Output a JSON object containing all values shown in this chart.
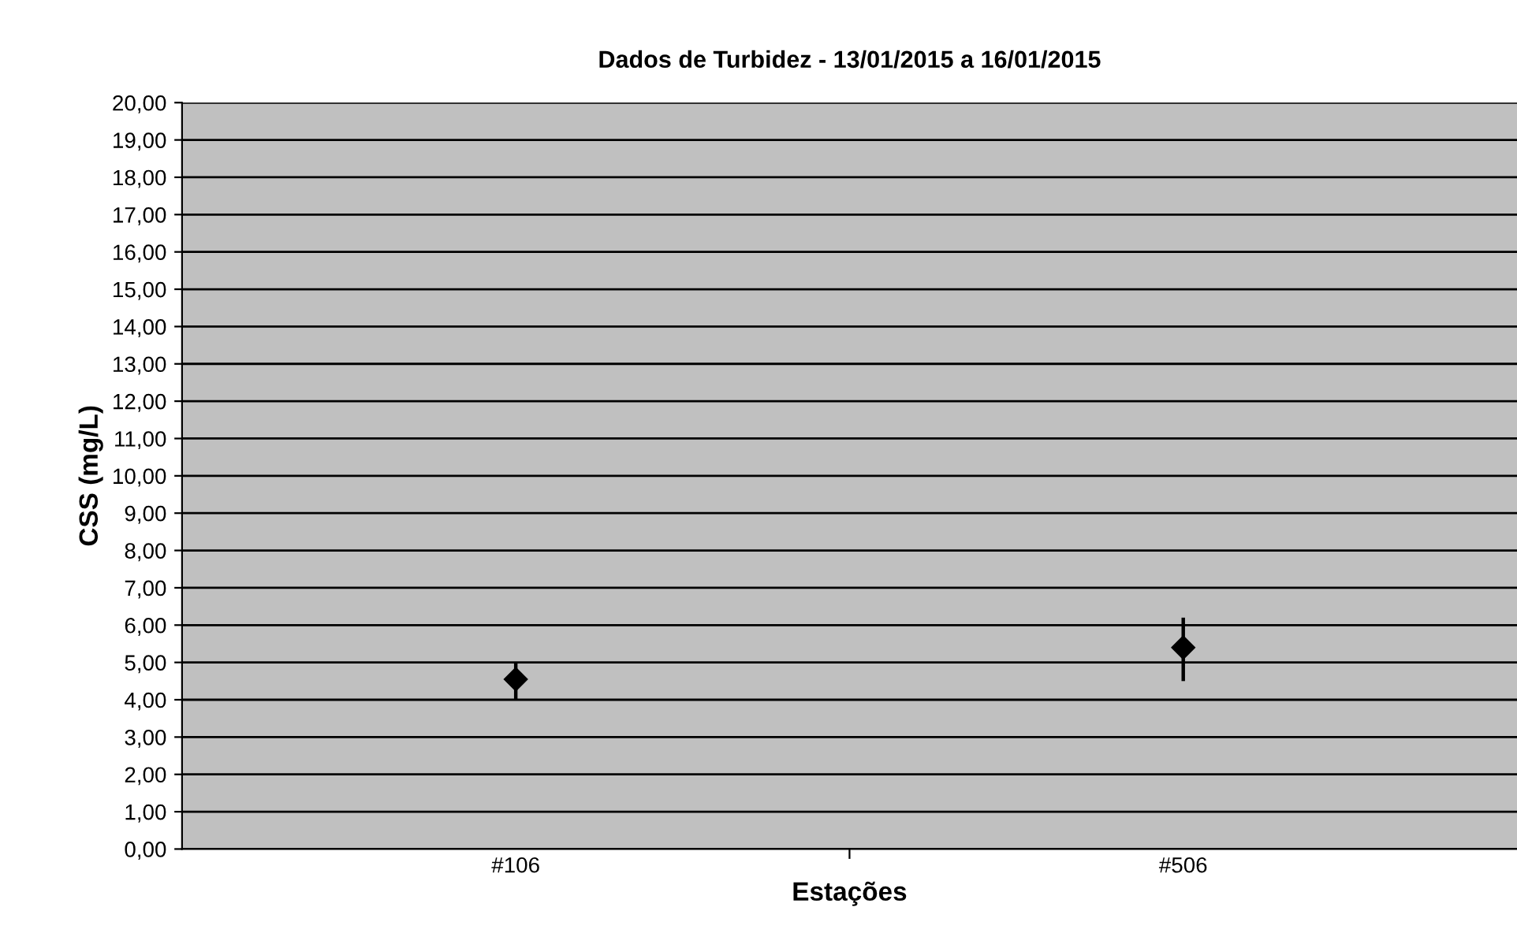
{
  "chart_data": {
    "type": "scatter",
    "title": "Dados de Turbidez - 13/01/2015 a 16/01/2015",
    "xlabel": "Estações",
    "ylabel": "CSS (mg/L)",
    "categories": [
      "#106",
      "#506"
    ],
    "series": [
      {
        "color": "#000000",
        "values": [
          4.55,
          5.4
        ],
        "errors": [
          [
            4.0,
            5.0
          ],
          [
            4.5,
            6.2
          ]
        ]
      }
    ],
    "marker": "diamond",
    "grid": "y",
    "legend": false,
    "ylim": [
      0,
      20
    ],
    "yticks": [
      {
        "value": 0,
        "label": "0,00"
      },
      {
        "value": 1,
        "label": "1,00"
      },
      {
        "value": 2,
        "label": "2,00"
      },
      {
        "value": 3,
        "label": "3,00"
      },
      {
        "value": 4,
        "label": "4,00"
      },
      {
        "value": 5,
        "label": "5,00"
      },
      {
        "value": 6,
        "label": "6,00"
      },
      {
        "value": 7,
        "label": "7,00"
      },
      {
        "value": 8,
        "label": "8,00"
      },
      {
        "value": 9,
        "label": "9,00"
      },
      {
        "value": 10,
        "label": "10,00"
      },
      {
        "value": 11,
        "label": "11,00"
      },
      {
        "value": 12,
        "label": "12,00"
      },
      {
        "value": 13,
        "label": "13,00"
      },
      {
        "value": 14,
        "label": "14,00"
      },
      {
        "value": 15,
        "label": "15,00"
      },
      {
        "value": 16,
        "label": "16,00"
      },
      {
        "value": 17,
        "label": "17,00"
      },
      {
        "value": 18,
        "label": "18,00"
      },
      {
        "value": 19,
        "label": "19,00"
      },
      {
        "value": 20,
        "label": "20,00"
      }
    ]
  }
}
